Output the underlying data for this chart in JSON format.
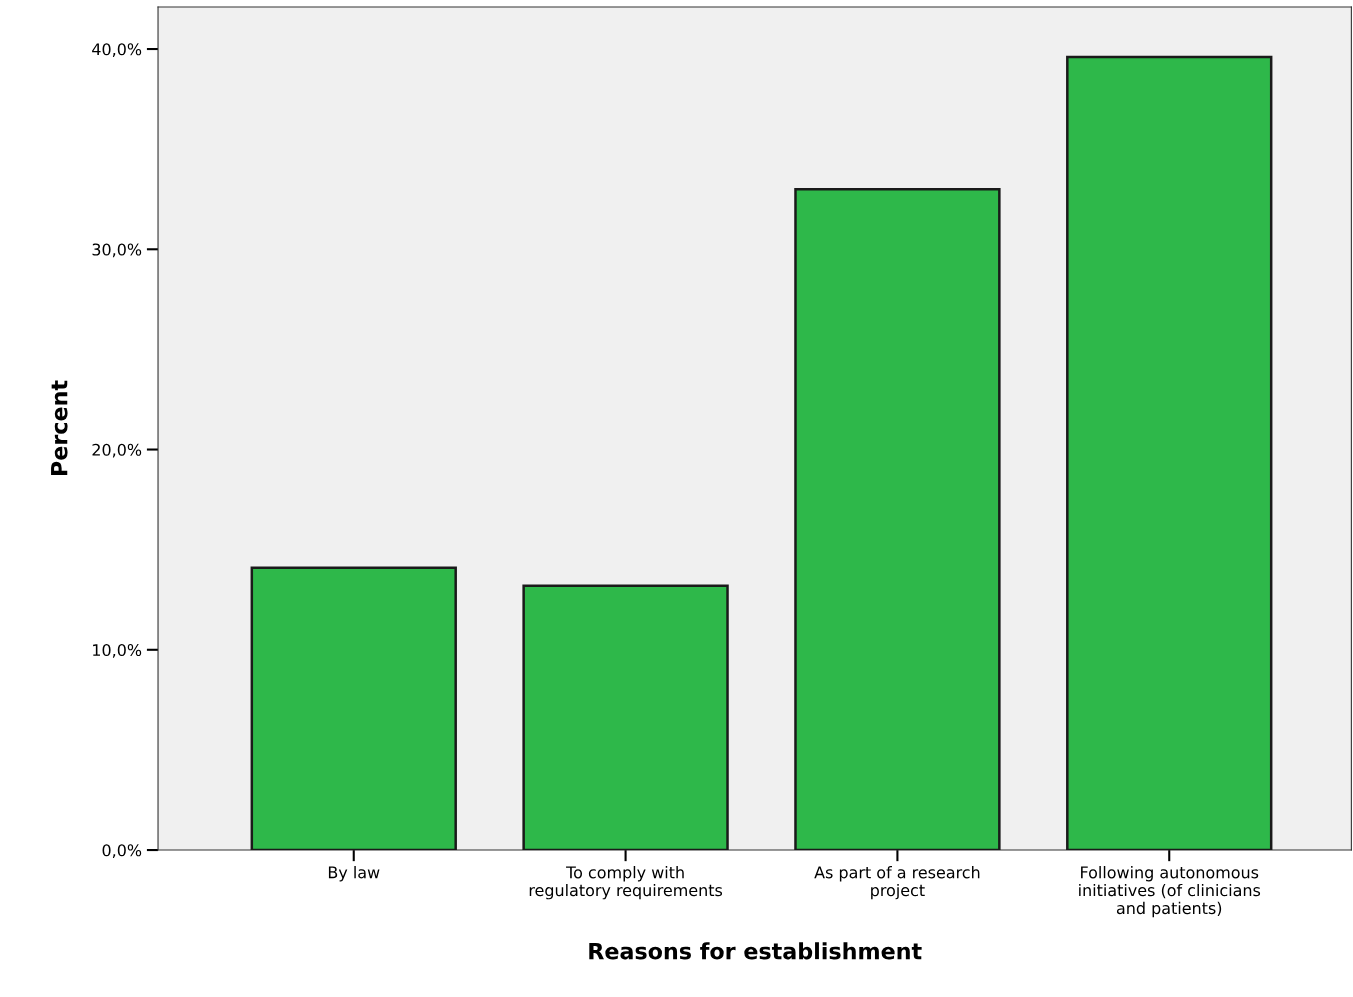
{
  "chart_data": {
    "type": "bar",
    "xlabel": "Reasons for establishment",
    "ylabel": "Percent",
    "categories": [
      "By law",
      "To comply with\nregulatory requirements",
      "As part of a research\nproject",
      "Following autonomous\ninitiatives (of clinicians\nand patients)"
    ],
    "values": [
      14.1,
      13.2,
      33.0,
      39.6
    ],
    "color": "#2eb84a",
    "ylim": [
      0,
      42.1
    ],
    "yticks": [
      {
        "value": 0,
        "label": "0,0%"
      },
      {
        "value": 10,
        "label": "10,0%"
      },
      {
        "value": 20,
        "label": "20,0%"
      },
      {
        "value": 30,
        "label": "30,0%"
      },
      {
        "value": 40,
        "label": "40,0%"
      }
    ],
    "grid": false,
    "legend": false
  }
}
